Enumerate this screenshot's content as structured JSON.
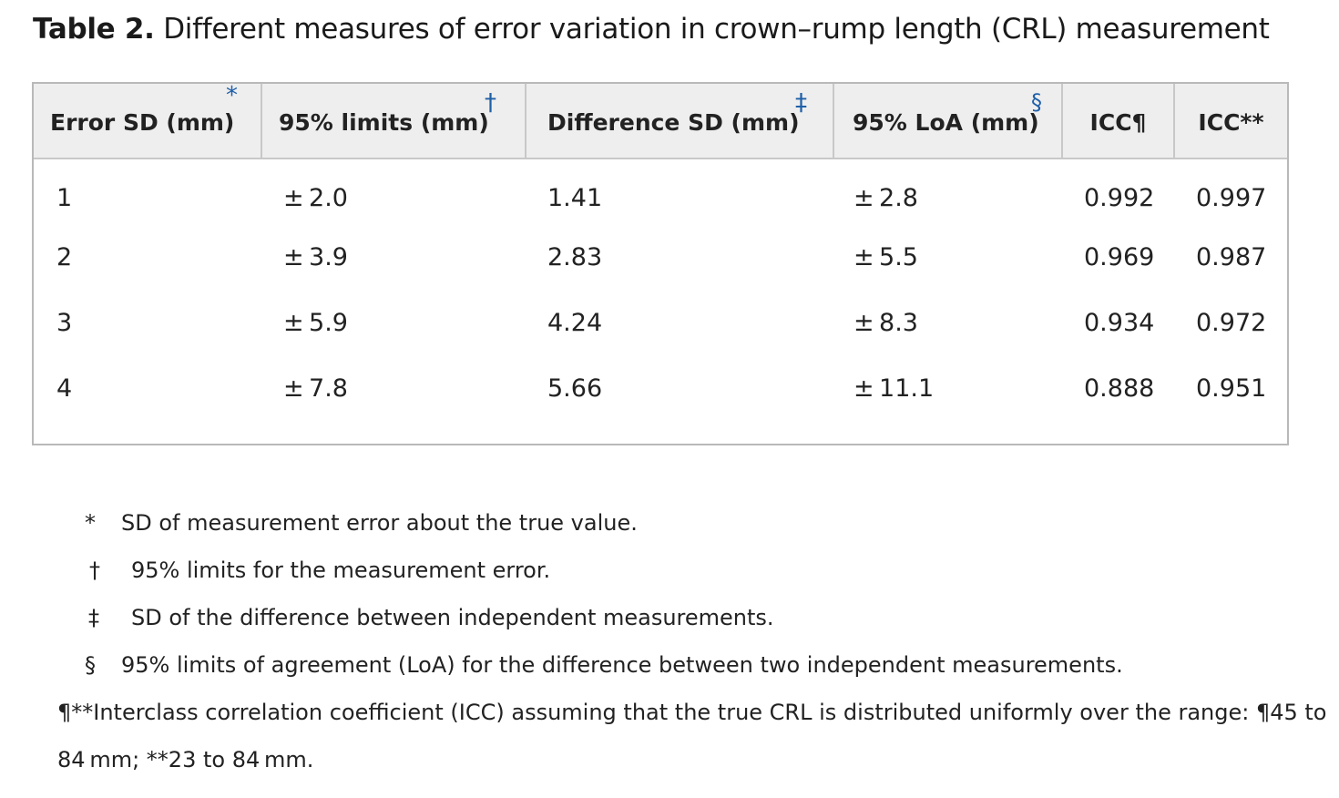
{
  "caption": {
    "label": "Table 2.",
    "text": "Different measures of error variation in crown–rump length (CRL) measurement"
  },
  "table": {
    "headers": [
      {
        "text": "Error SD (mm)",
        "mark": "*"
      },
      {
        "text": "95% limits (mm)",
        "mark": "†"
      },
      {
        "text": "Difference SD (mm)",
        "mark": "‡"
      },
      {
        "text": "95% LoA (mm)",
        "mark": "§"
      },
      {
        "text": "ICC¶",
        "mark": ""
      },
      {
        "text": "ICC**",
        "mark": ""
      }
    ],
    "rows": [
      [
        "1",
        "± 2.0",
        "1.41",
        "± 2.8",
        "0.992",
        "0.997"
      ],
      [
        "2",
        "± 3.9",
        "2.83",
        "± 5.5",
        "0.969",
        "0.987"
      ],
      [
        "3",
        "± 5.9",
        "4.24",
        "± 8.3",
        "0.934",
        "0.972"
      ],
      [
        "4",
        "± 7.8",
        "5.66",
        "± 11.1",
        "0.888",
        "0.951"
      ]
    ]
  },
  "footnotes": [
    {
      "symbol": "*",
      "text": "SD of measurement error about the true value."
    },
    {
      "symbol": "†",
      "text": "95% limits for the measurement error."
    },
    {
      "symbol": "‡",
      "text": "SD of the difference between independent measurements."
    },
    {
      "symbol": "§",
      "text": "95% limits of agreement (LoA) for the difference between two independent measurements."
    }
  ],
  "icc_note": {
    "line1": "¶**Interclass correlation coefficient (ICC) assuming that the true CRL is distributed uniformly over the range: ¶45 to",
    "line2": "84 mm; **23 to 84 mm."
  }
}
